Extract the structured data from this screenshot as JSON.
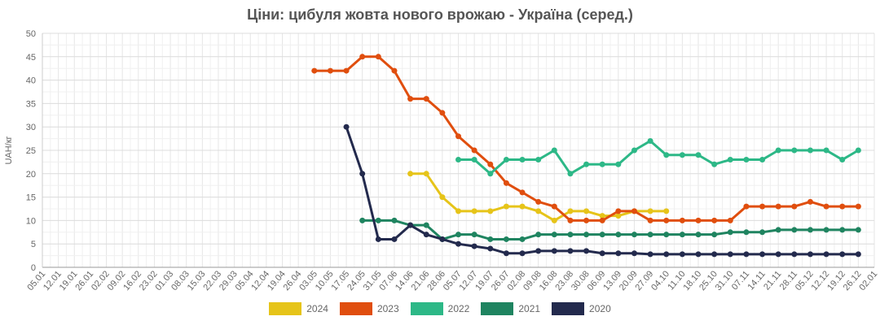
{
  "chart_data": {
    "type": "line",
    "title": "Ціни: цибуля жовта нового врожаю - Україна (серед.)",
    "ylabel": "UAH/кг",
    "xlabel": "",
    "ylim": [
      0,
      50
    ],
    "y_ticks": [
      0,
      5,
      10,
      15,
      20,
      25,
      30,
      35,
      40,
      45,
      50
    ],
    "grid": true,
    "legend_position": "bottom",
    "categories": [
      "05.01",
      "12.01",
      "19.01",
      "26.01",
      "02.02",
      "09.02",
      "16.02",
      "23.02",
      "01.03",
      "08.03",
      "15.03",
      "22.03",
      "29.03",
      "05.04",
      "12.04",
      "19.04",
      "26.04",
      "03.05",
      "10.05",
      "17.05",
      "24.05",
      "31.05",
      "07.06",
      "14.06",
      "21.06",
      "28.06",
      "05.07",
      "12.07",
      "19.07",
      "26.07",
      "02.08",
      "09.08",
      "16.08",
      "23.08",
      "30.08",
      "06.09",
      "13.09",
      "20.09",
      "27.09",
      "04.10",
      "11.10",
      "18.10",
      "25.10",
      "31.10",
      "07.11",
      "14.11",
      "21.11",
      "28.11",
      "05.12",
      "12.12",
      "19.12",
      "26.12",
      "02.01"
    ],
    "series": [
      {
        "name": "2024",
        "color": "#e6c419",
        "values": [
          null,
          null,
          null,
          null,
          null,
          null,
          null,
          null,
          null,
          null,
          null,
          null,
          null,
          null,
          null,
          null,
          null,
          null,
          null,
          null,
          null,
          null,
          null,
          20,
          20,
          15,
          12,
          12,
          12,
          13,
          13,
          12,
          10,
          12,
          12,
          11,
          11,
          12,
          12,
          12,
          null,
          null,
          null,
          null,
          null,
          null,
          null,
          null,
          null,
          null,
          null,
          null,
          null
        ]
      },
      {
        "name": "2023",
        "color": "#e04e0e",
        "values": [
          null,
          null,
          null,
          null,
          null,
          null,
          null,
          null,
          null,
          null,
          null,
          null,
          null,
          null,
          null,
          null,
          null,
          42,
          42,
          42,
          45,
          45,
          42,
          36,
          36,
          33,
          28,
          25,
          22,
          18,
          16,
          14,
          13,
          10,
          10,
          10,
          12,
          12,
          10,
          10,
          10,
          10,
          10,
          10,
          13,
          13,
          13,
          13,
          14,
          13,
          13,
          13,
          null
        ]
      },
      {
        "name": "2022",
        "color": "#2db887",
        "values": [
          null,
          null,
          null,
          null,
          null,
          null,
          null,
          null,
          null,
          null,
          null,
          null,
          null,
          null,
          null,
          null,
          null,
          null,
          null,
          null,
          null,
          null,
          null,
          null,
          null,
          null,
          23,
          23,
          20,
          23,
          23,
          23,
          25,
          20,
          22,
          22,
          22,
          25,
          27,
          24,
          24,
          24,
          22,
          23,
          23,
          23,
          25,
          25,
          25,
          25,
          23,
          25,
          null
        ]
      },
      {
        "name": "2021",
        "color": "#1f8460",
        "values": [
          null,
          null,
          null,
          null,
          null,
          null,
          null,
          null,
          null,
          null,
          null,
          null,
          null,
          null,
          null,
          null,
          null,
          null,
          null,
          null,
          10,
          10,
          10,
          9,
          9,
          6,
          7,
          7,
          6,
          6,
          6,
          7,
          7,
          7,
          7,
          7,
          7,
          7,
          7,
          7,
          7,
          7,
          7,
          7.5,
          7.5,
          7.5,
          8,
          8,
          8,
          8,
          8,
          8,
          null
        ]
      },
      {
        "name": "2020",
        "color": "#232a4d",
        "values": [
          null,
          null,
          null,
          null,
          null,
          null,
          null,
          null,
          null,
          null,
          null,
          null,
          null,
          null,
          null,
          null,
          null,
          null,
          null,
          30,
          20,
          6,
          6,
          9,
          7,
          6,
          5,
          4.5,
          4,
          3,
          3,
          3.5,
          3.5,
          3.5,
          3.5,
          3,
          3,
          3,
          2.8,
          2.8,
          2.8,
          2.8,
          2.8,
          2.8,
          2.8,
          2.8,
          2.8,
          2.8,
          2.8,
          2.8,
          2.8,
          2.8,
          null
        ]
      }
    ]
  }
}
